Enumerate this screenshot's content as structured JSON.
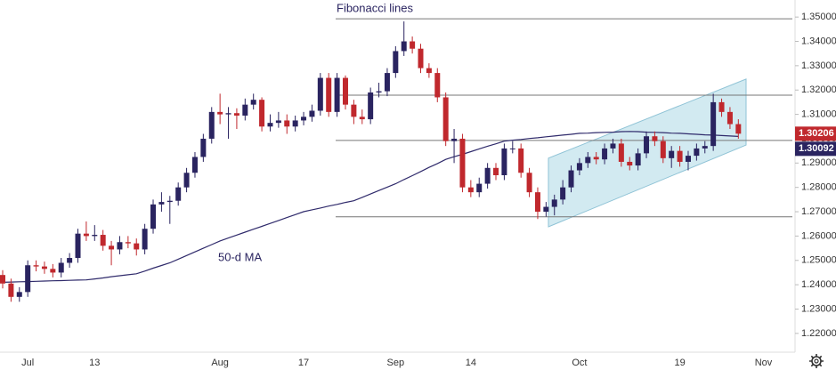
{
  "chart_data": {
    "type": "candlestick",
    "annotations": [
      "Fibonacci lines",
      "50-d MA"
    ],
    "categories": [
      null,
      null,
      null,
      "Jul",
      null,
      null,
      null,
      null,
      null,
      null,
      null,
      "13",
      null,
      null,
      null,
      null,
      null,
      null,
      null,
      null,
      null,
      null,
      null,
      null,
      null,
      null,
      "Aug",
      null,
      null,
      null,
      null,
      null,
      null,
      null,
      null,
      null,
      "17",
      null,
      null,
      null,
      null,
      null,
      null,
      null,
      null,
      null,
      null,
      "Sep",
      null,
      null,
      null,
      null,
      null,
      null,
      null,
      null,
      "14",
      null,
      null,
      null,
      null,
      null,
      null,
      null,
      null,
      null,
      null,
      null,
      null,
      "Oct",
      null,
      null,
      null,
      null,
      null,
      null,
      null,
      null,
      null,
      null,
      null,
      "19",
      null,
      null,
      null,
      null,
      null,
      null,
      null,
      null,
      null,
      "Nov"
    ],
    "open": [
      1.244,
      1.2405,
      1.235,
      1.237,
      1.248,
      1.2475,
      1.2465,
      1.245,
      1.249,
      1.251,
      1.261,
      1.26,
      1.2605,
      1.256,
      1.2545,
      1.2575,
      1.257,
      1.2545,
      1.263,
      1.273,
      1.274,
      1.2745,
      1.28,
      1.286,
      1.2925,
      1.3,
      1.311,
      1.31,
      1.3105,
      1.3095,
      1.314,
      1.316,
      1.305,
      1.3065,
      1.3075,
      1.305,
      1.3075,
      1.309,
      1.3115,
      1.325,
      1.311,
      1.325,
      1.314,
      1.309,
      1.308,
      1.319,
      1.3195,
      1.327,
      1.336,
      1.34,
      1.337,
      1.329,
      1.327,
      1.317,
      1.299,
      1.3,
      1.28,
      1.278,
      1.2815,
      1.288,
      1.285,
      1.296,
      1.296,
      1.286,
      1.278,
      1.27,
      1.272,
      1.275,
      1.28,
      1.287,
      1.29,
      1.2925,
      1.2915,
      1.296,
      1.298,
      1.2905,
      1.289,
      1.294,
      1.301,
      1.299,
      1.292,
      1.295,
      1.2905,
      1.293,
      1.296,
      1.297,
      1.315,
      1.311,
      1.306,
      null,
      null,
      null
    ],
    "high": [
      1.246,
      1.2425,
      1.239,
      1.25,
      1.25,
      1.2495,
      1.2485,
      1.251,
      1.253,
      1.263,
      1.266,
      1.2645,
      1.2625,
      1.258,
      1.26,
      1.26,
      1.259,
      1.265,
      1.275,
      1.278,
      1.2765,
      1.282,
      1.288,
      1.2945,
      1.302,
      1.313,
      1.3185,
      1.313,
      1.3125,
      1.3165,
      1.3185,
      1.317,
      1.31,
      1.311,
      1.31,
      1.3095,
      1.311,
      1.314,
      1.327,
      1.327,
      1.327,
      1.326,
      1.316,
      1.312,
      1.321,
      1.323,
      1.329,
      1.338,
      1.3482,
      1.342,
      1.339,
      1.331,
      1.329,
      1.319,
      1.304,
      1.302,
      1.283,
      1.284,
      1.29,
      1.29,
      1.298,
      1.299,
      1.298,
      1.288,
      1.28,
      1.274,
      1.277,
      1.283,
      1.289,
      1.292,
      1.2945,
      1.2945,
      1.298,
      1.3,
      1.3,
      1.2925,
      1.296,
      1.303,
      1.303,
      1.301,
      1.297,
      1.297,
      1.295,
      1.298,
      1.299,
      1.3185,
      1.3165,
      1.313,
      1.308,
      null,
      null,
      null
    ],
    "low": [
      1.2385,
      1.233,
      1.233,
      1.235,
      1.2455,
      1.2445,
      1.243,
      1.243,
      1.247,
      1.249,
      1.258,
      1.258,
      1.254,
      1.248,
      1.2525,
      1.255,
      1.252,
      1.2525,
      1.261,
      1.27,
      1.265,
      1.2725,
      1.278,
      1.284,
      1.2905,
      1.298,
      1.306,
      1.3,
      1.304,
      1.3075,
      1.312,
      1.303,
      1.303,
      1.3045,
      1.302,
      1.303,
      1.3055,
      1.307,
      1.3095,
      1.309,
      1.309,
      1.312,
      1.306,
      1.306,
      1.306,
      1.317,
      1.3175,
      1.325,
      1.334,
      1.335,
      1.327,
      1.325,
      1.315,
      1.297,
      1.29,
      1.278,
      1.276,
      1.276,
      1.2795,
      1.283,
      1.283,
      1.294,
      1.284,
      1.276,
      1.267,
      1.268,
      1.2685,
      1.273,
      1.278,
      1.285,
      1.288,
      1.2895,
      1.2895,
      1.294,
      1.2885,
      1.287,
      1.287,
      1.292,
      1.297,
      1.29,
      1.288,
      1.2885,
      1.287,
      1.291,
      1.294,
      1.295,
      1.309,
      1.304,
      1.3,
      null,
      null,
      null
    ],
    "close": [
      1.2405,
      1.235,
      1.237,
      1.248,
      1.2475,
      1.2465,
      1.245,
      1.249,
      1.251,
      1.261,
      1.26,
      1.2605,
      1.256,
      1.2545,
      1.2575,
      1.257,
      1.2545,
      1.263,
      1.273,
      1.274,
      1.2745,
      1.28,
      1.286,
      1.2925,
      1.3,
      1.311,
      1.31,
      1.3105,
      1.3095,
      1.314,
      1.316,
      1.305,
      1.3065,
      1.3075,
      1.305,
      1.3075,
      1.309,
      1.3115,
      1.325,
      1.311,
      1.325,
      1.314,
      1.309,
      1.308,
      1.319,
      1.3195,
      1.327,
      1.336,
      1.34,
      1.337,
      1.329,
      1.327,
      1.317,
      1.299,
      1.3,
      1.28,
      1.278,
      1.2815,
      1.288,
      1.285,
      1.296,
      1.296,
      1.286,
      1.278,
      1.27,
      1.272,
      1.275,
      1.28,
      1.287,
      1.29,
      1.2925,
      1.2915,
      1.296,
      1.298,
      1.2905,
      1.289,
      1.294,
      1.301,
      1.299,
      1.292,
      1.295,
      1.2905,
      1.293,
      1.296,
      1.297,
      1.315,
      1.311,
      1.306,
      1.30206,
      null,
      null,
      null
    ],
    "up_color": "#2a2460",
    "down_color": "#c0282d",
    "ma": {
      "name": "50-d MA",
      "color": "#2f2a6b",
      "values": [
        1.241,
        1.2411,
        1.2412,
        1.2413,
        1.2414,
        1.2415,
        1.2416,
        1.2417,
        1.2418,
        1.2419,
        1.242,
        1.2424,
        1.2428,
        1.2433,
        1.2437,
        1.2441,
        1.2445,
        1.2456,
        1.2468,
        1.2479,
        1.249,
        1.2505,
        1.252,
        1.2535,
        1.255,
        1.2565,
        1.258,
        1.2592,
        1.2604,
        1.2616,
        1.2628,
        1.264,
        1.2652,
        1.2664,
        1.2676,
        1.2688,
        1.27,
        1.2708,
        1.2715,
        1.2723,
        1.273,
        1.2738,
        1.2745,
        1.2759,
        1.2773,
        1.2787,
        1.2801,
        1.2815,
        1.2832,
        1.2848,
        1.2865,
        1.2882,
        1.2898,
        1.2915,
        1.2926,
        1.2936,
        1.2947,
        1.2958,
        1.2969,
        1.2979,
        1.299,
        1.2994,
        1.2997,
        1.3001,
        1.3004,
        1.3008,
        1.3011,
        1.3015,
        1.3018,
        1.3022,
        1.3023,
        1.3025,
        1.3026,
        1.3027,
        1.3029,
        1.303,
        1.3029,
        1.3027,
        1.3026,
        1.3025,
        1.3023,
        1.3022,
        1.302,
        1.3018,
        1.3016,
        1.3015,
        1.3013,
        1.3011,
        1.30092,
        null,
        null,
        null
      ]
    },
    "fib_levels": [
      1.3493,
      1.3179,
      1.2993,
      1.2679
    ],
    "channel": {
      "upper": [
        1.292,
        1.3245
      ],
      "lower": [
        1.2638,
        1.2974
      ],
      "color": "#add8e6"
    },
    "ylim": [
      1.213,
      1.357
    ],
    "yticks": [
      {
        "value": 1.35,
        "label": "1.35000"
      },
      {
        "value": 1.34,
        "label": "1.34000"
      },
      {
        "value": 1.33,
        "label": "1.33000"
      },
      {
        "value": 1.32,
        "label": "1.32000"
      },
      {
        "value": 1.31,
        "label": "1.31000"
      },
      {
        "value": 1.3,
        "label": "1.30000"
      },
      {
        "value": 1.29,
        "label": "1.29000"
      },
      {
        "value": 1.28,
        "label": "1.28000"
      },
      {
        "value": 1.27,
        "label": "1.27000"
      },
      {
        "value": 1.26,
        "label": "1.26000"
      },
      {
        "value": 1.25,
        "label": "1.25000"
      },
      {
        "value": 1.24,
        "label": "1.24000"
      },
      {
        "value": 1.23,
        "label": "1.23000"
      },
      {
        "value": 1.22,
        "label": "1.22000"
      }
    ],
    "grid": false
  }
}
